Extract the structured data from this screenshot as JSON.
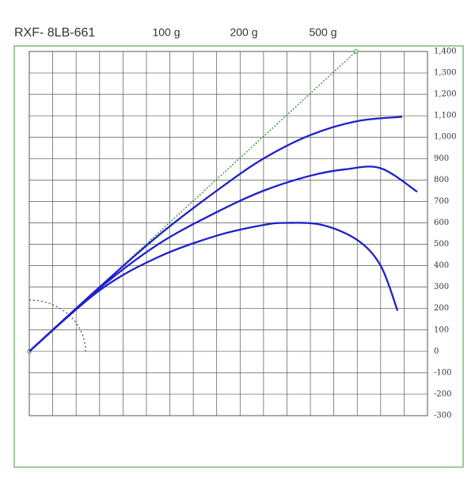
{
  "chart_data": {
    "type": "line",
    "title": "RXF- 8LB-661",
    "xlim": [
      0,
      1700
    ],
    "xticks": [
      0,
      100,
      200,
      300,
      400,
      500,
      600,
      700,
      800,
      900,
      1000,
      1100,
      1200,
      1300,
      1400,
      1500,
      1600,
      1700
    ],
    "ylim": [
      -300,
      1400
    ],
    "yticks": [
      -300,
      -200,
      -100,
      0,
      100,
      200,
      300,
      400,
      500,
      600,
      700,
      800,
      900,
      {
        "value": 1000,
        "label": "1,000"
      },
      {
        "value": 1100,
        "label": "1,100"
      },
      {
        "value": 1200,
        "label": "1,200"
      },
      {
        "value": 1300,
        "label": "1,300"
      },
      {
        "value": 1400,
        "label": "1,400"
      }
    ],
    "grid": true,
    "series": [
      {
        "name": "100 g",
        "color": "#1f1fcc",
        "x": [
          0,
          300,
          550,
          800,
          1000,
          1200,
          1400,
          1592
        ],
        "values": [
          0,
          300,
          540,
          750,
          900,
          1010,
          1075,
          1095
        ]
      },
      {
        "name": "200 g",
        "color": "#1f1fcc",
        "x": [
          0,
          300,
          550,
          800,
          1000,
          1200,
          1350,
          1500,
          1656
        ],
        "values": [
          0,
          295,
          500,
          650,
          750,
          820,
          850,
          855,
          745
        ]
      },
      {
        "name": "500 g",
        "color": "#1f1fcc",
        "x": [
          0,
          300,
          550,
          800,
          1000,
          1100,
          1250,
          1400,
          1500,
          1572
        ],
        "values": [
          0,
          285,
          440,
          540,
          590,
          600,
          590,
          520,
          400,
          190
        ]
      }
    ],
    "reference_line": {
      "color": "#2e8b2e",
      "x": [
        0,
        1395
      ],
      "values": [
        0,
        1400
      ]
    },
    "reference_arc": {
      "color": "#6a3aa0",
      "radius": 240
    }
  }
}
